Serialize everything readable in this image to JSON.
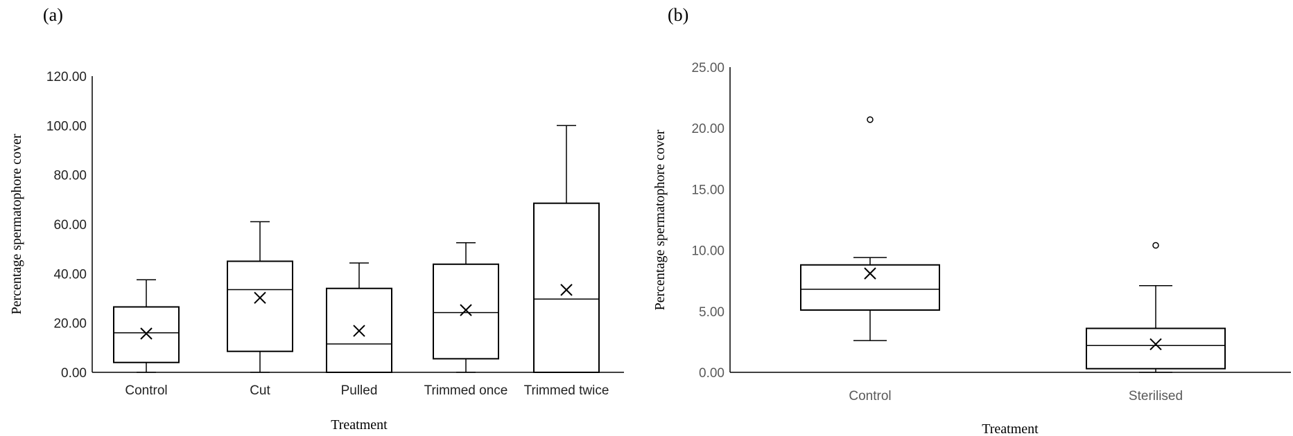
{
  "chart_data": [
    {
      "type": "box",
      "panel_label": "(a)",
      "xlabel": "Treatment",
      "ylabel": "Percentage spermatophore cover",
      "ylim": [
        0,
        120
      ],
      "yticks": [
        "0.00",
        "20.00",
        "40.00",
        "60.00",
        "80.00",
        "100.00",
        "120.00"
      ],
      "categories": [
        "Control",
        "Cut",
        "Pulled",
        "Trimmed once",
        "Trimmed twice"
      ],
      "boxes": [
        {
          "min": 0.0,
          "q1": 4.0,
          "median": 16.0,
          "q3": 26.5,
          "max": 37.5,
          "mean": 15.7,
          "outliers": []
        },
        {
          "min": 0.0,
          "q1": 8.5,
          "median": 33.5,
          "q3": 45.0,
          "max": 61.0,
          "mean": 30.2,
          "outliers": []
        },
        {
          "min": 0.0,
          "q1": 0.0,
          "median": 11.5,
          "q3": 34.0,
          "max": 44.3,
          "mean": 16.8,
          "outliers": []
        },
        {
          "min": 0.0,
          "q1": 5.5,
          "median": 24.2,
          "q3": 43.8,
          "max": 52.5,
          "mean": 25.2,
          "outliers": []
        },
        {
          "min": 0.0,
          "q1": 0.0,
          "median": 29.7,
          "q3": 68.5,
          "max": 100.0,
          "mean": 33.4,
          "outliers": []
        }
      ],
      "grid": false
    },
    {
      "type": "box",
      "panel_label": "(b)",
      "xlabel": "Treatment",
      "ylabel": "Percentage spermatophore cover",
      "ylim": [
        0,
        25
      ],
      "yticks": [
        "0.00",
        "5.00",
        "10.00",
        "15.00",
        "20.00",
        "25.00"
      ],
      "categories": [
        "Control",
        "Sterilised"
      ],
      "boxes": [
        {
          "min": 2.6,
          "q1": 5.1,
          "median": 6.8,
          "q3": 8.8,
          "max": 9.4,
          "mean": 8.1,
          "outliers": [
            20.7
          ]
        },
        {
          "min": 0.0,
          "q1": 0.3,
          "median": 2.2,
          "q3": 3.6,
          "max": 7.1,
          "mean": 2.3,
          "outliers": [
            10.4
          ]
        }
      ],
      "grid": false
    }
  ]
}
